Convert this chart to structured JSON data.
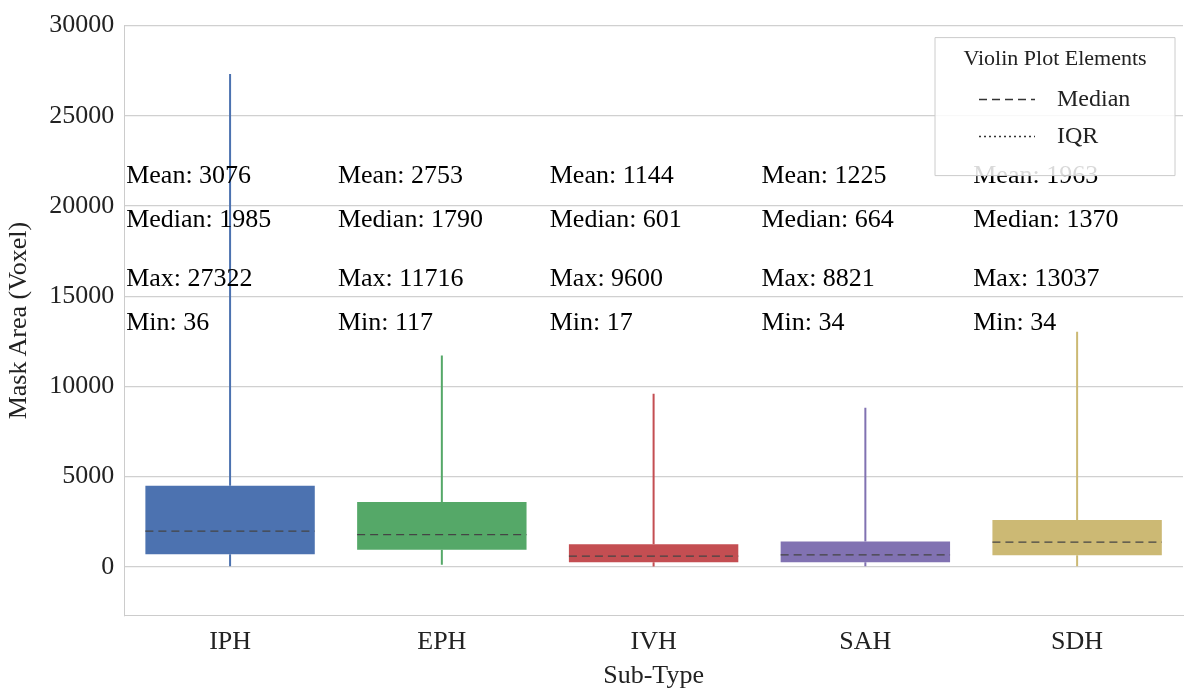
{
  "chart_data": {
    "type": "box",
    "xlabel": "Sub-Type",
    "ylabel": "Mask Area (Voxel)",
    "legend_title": "Violin Plot Elements",
    "grid": "y",
    "categories": [
      "IPH",
      "EPH",
      "IVH",
      "SAH",
      "SDH"
    ],
    "colors": [
      "#4c72b0",
      "#55a868",
      "#c44e52",
      "#8172b2",
      "#ccb974"
    ],
    "boxes": [
      {
        "low": 36,
        "q1": 700,
        "median": 1985,
        "q3": 4500,
        "high": 27322
      },
      {
        "low": 117,
        "q1": 950,
        "median": 1790,
        "q3": 3600,
        "high": 11716
      },
      {
        "low": 17,
        "q1": 250,
        "median": 601,
        "q3": 1250,
        "high": 9600
      },
      {
        "low": 34,
        "q1": 250,
        "median": 664,
        "q3": 1400,
        "high": 8821
      },
      {
        "low": 34,
        "q1": 650,
        "median": 1370,
        "q3": 2600,
        "high": 13037
      }
    ],
    "ylim": [
      -2700,
      30000
    ],
    "yticks": [
      0,
      5000,
      10000,
      15000,
      20000,
      25000,
      30000
    ],
    "annotations": [
      "Mean: 3076",
      "Median: 1985",
      "Max: 27322",
      "Min: 36",
      "Mean: 2753",
      "Median: 1790",
      "Max: 11716",
      "Min: 117",
      "Mean: 1144",
      "Median: 601",
      "Max: 9600",
      "Min: 17",
      "Mean: 1225",
      "Median: 664",
      "Max: 8821",
      "Min: 34",
      "Mean: 1963",
      "Median: 1370",
      "Max: 13037",
      "Min: 34",
      "Median",
      "IQR"
    ]
  }
}
